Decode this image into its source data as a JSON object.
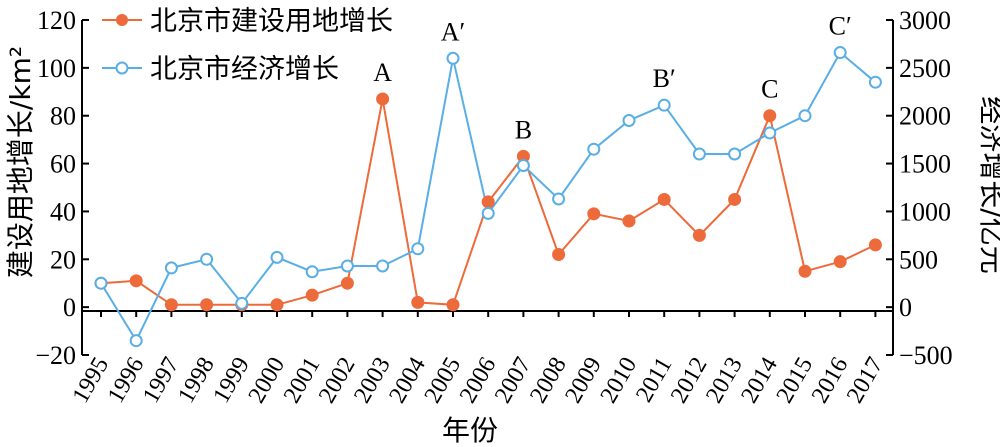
{
  "chart_data": {
    "type": "line",
    "categories": [
      "1995",
      "1996",
      "1997",
      "1998",
      "1999",
      "2000",
      "2001",
      "2002",
      "2003",
      "2004",
      "2005",
      "2006",
      "2007",
      "2008",
      "2009",
      "2010",
      "2011",
      "2012",
      "2013",
      "2014",
      "2015",
      "2016",
      "2017"
    ],
    "series": [
      {
        "name": "北京市建设用地增长",
        "axis": "left",
        "color": "#ed6a3a",
        "marker": "filled-circle",
        "values": [
          10,
          11,
          1,
          1,
          1,
          1,
          5,
          10,
          87,
          2,
          1,
          44,
          63,
          22,
          39,
          36,
          45,
          30,
          45,
          80,
          15,
          19,
          26
        ]
      },
      {
        "name": "北京市经济增长",
        "axis": "right",
        "color": "#5aaee6",
        "marker": "hollow-circle",
        "values": [
          250,
          -350,
          410,
          500,
          40,
          520,
          370,
          430,
          430,
          610,
          2600,
          980,
          1480,
          1130,
          1650,
          1950,
          2110,
          1600,
          1600,
          1820,
          2000,
          2660,
          2350
        ]
      }
    ],
    "y_left": {
      "label": "建设用地增长/km²",
      "ylim": [
        -20,
        120
      ],
      "ticks": [
        -20,
        0,
        20,
        40,
        60,
        80,
        100,
        120
      ]
    },
    "y_right": {
      "label": "经济增长/亿元",
      "ylim": [
        -500,
        3000
      ],
      "ticks": [
        -500,
        0,
        500,
        1000,
        1500,
        2000,
        2500,
        3000
      ]
    },
    "xlabel": "年份",
    "title": "",
    "grid": false,
    "legend": "top-left",
    "annotations": [
      {
        "text": "A",
        "series": 0,
        "category": "2003"
      },
      {
        "text": "A′",
        "series": 1,
        "category": "2005"
      },
      {
        "text": "B",
        "series": 0,
        "category": "2007"
      },
      {
        "text": "B′",
        "series": 1,
        "category": "2011"
      },
      {
        "text": "C",
        "series": 0,
        "category": "2014"
      },
      {
        "text": "C′",
        "series": 1,
        "category": "2016"
      }
    ]
  }
}
